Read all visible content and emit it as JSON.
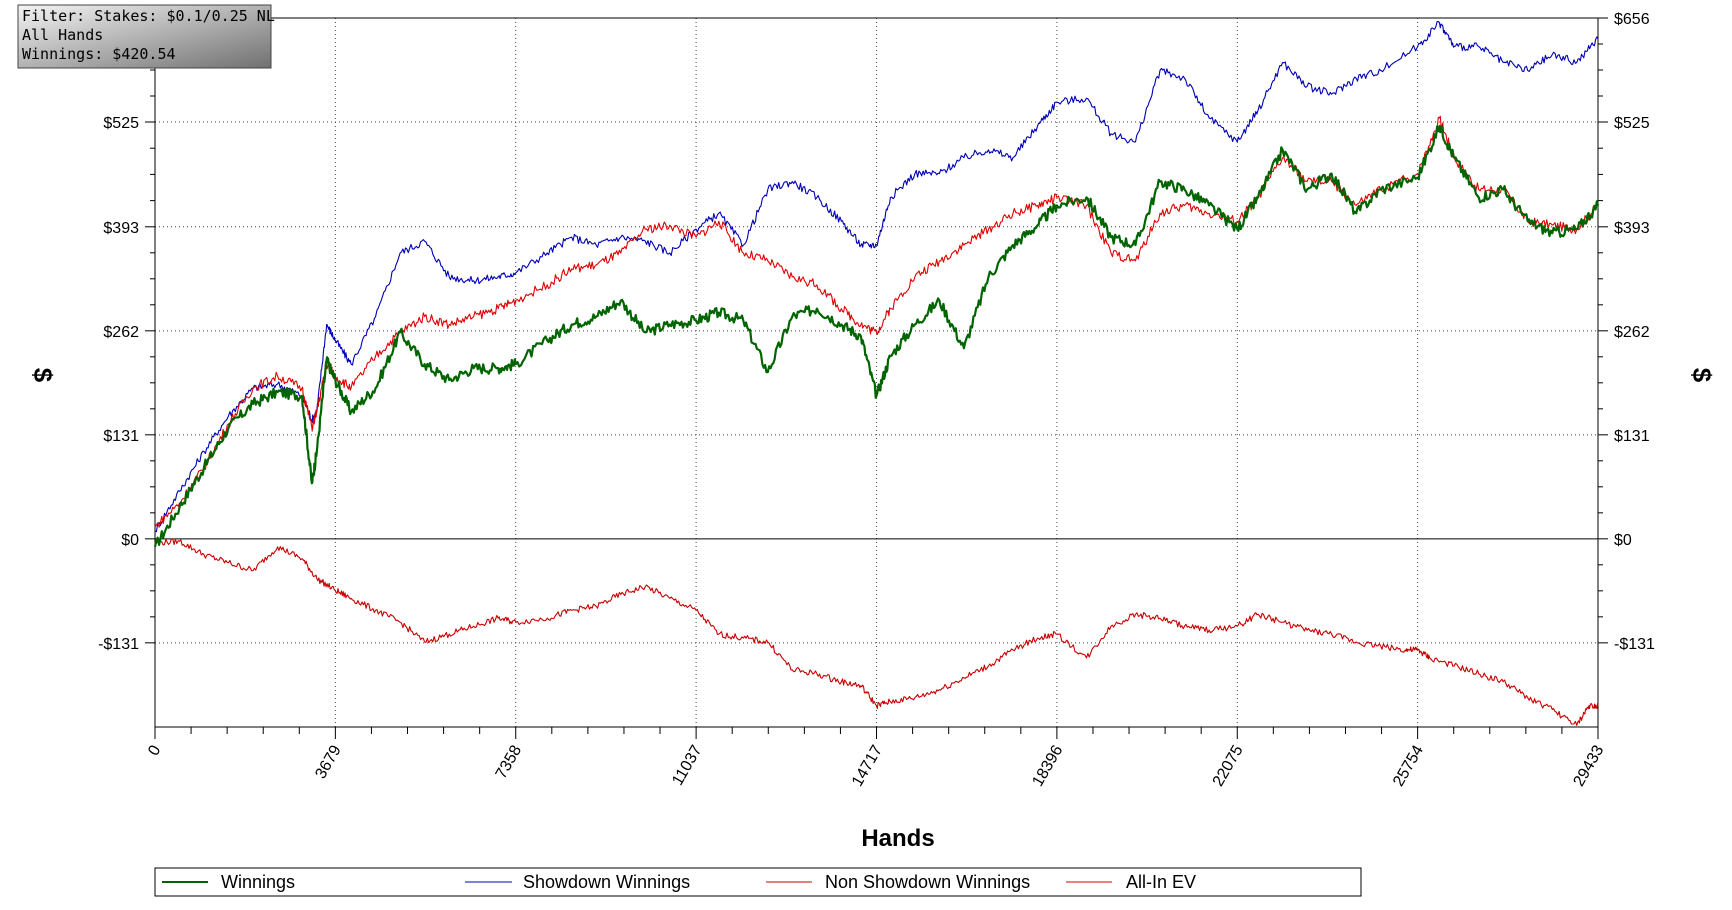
{
  "info_box": {
    "line1": "Filter: Stakes: $0.1/0.25 NL",
    "line2": "All Hands",
    "line3": "Winnings: $420.54"
  },
  "chart_data": {
    "type": "line",
    "xlabel": "Hands",
    "ylabel": "$",
    "xlim": [
      0,
      29433
    ],
    "ylim": [
      -237,
      656
    ],
    "x_ticks": [
      0,
      3679,
      7358,
      11037,
      14717,
      18396,
      22075,
      25754,
      29433
    ],
    "y_ticks": [
      -131,
      0,
      131,
      262,
      393,
      525,
      656
    ],
    "y_tick_labels": [
      "-$131",
      "$0",
      "$131",
      "$262",
      "$393",
      "$525",
      "$656"
    ],
    "grid": true,
    "legend_position": "bottom",
    "series": [
      {
        "name": "Winnings",
        "color": "#006400",
        "x": [
          0,
          500,
          1000,
          1500,
          2000,
          2500,
          3000,
          3200,
          3300,
          3500,
          3679,
          4000,
          4500,
          5000,
          5500,
          6000,
          6500,
          7000,
          7358,
          8000,
          8500,
          9000,
          9500,
          10000,
          10500,
          11037,
          11500,
          12000,
          12500,
          13000,
          13500,
          14000,
          14400,
          14717,
          15000,
          15500,
          16000,
          16500,
          17000,
          17500,
          18000,
          18396,
          19000,
          19500,
          20000,
          20500,
          21000,
          21500,
          22075,
          22500,
          23000,
          23500,
          24000,
          24500,
          25000,
          25754,
          26200,
          26500,
          27000,
          27500,
          28000,
          28500,
          29000,
          29433
        ],
        "values": [
          -10,
          40,
          90,
          140,
          170,
          185,
          180,
          70,
          110,
          225,
          200,
          160,
          190,
          260,
          220,
          200,
          215,
          215,
          220,
          250,
          270,
          280,
          300,
          260,
          270,
          275,
          285,
          275,
          210,
          280,
          290,
          270,
          255,
          180,
          230,
          270,
          300,
          240,
          330,
          370,
          395,
          420,
          430,
          380,
          370,
          450,
          440,
          420,
          390,
          430,
          490,
          440,
          460,
          410,
          440,
          455,
          520,
          480,
          430,
          440,
          400,
          385,
          390,
          420
        ]
      },
      {
        "name": "Showdown Winnings",
        "color": "#0000b4",
        "x": [
          0,
          500,
          1000,
          1500,
          2000,
          2500,
          3000,
          3200,
          3300,
          3500,
          3679,
          4000,
          4500,
          5000,
          5500,
          6000,
          6500,
          7000,
          7358,
          8000,
          8500,
          9000,
          9500,
          10000,
          10500,
          11037,
          11500,
          12000,
          12500,
          13000,
          13500,
          14000,
          14400,
          14717,
          15000,
          15500,
          16000,
          16500,
          17000,
          17500,
          18000,
          18396,
          19000,
          19500,
          20000,
          20500,
          21000,
          21500,
          22075,
          22500,
          23000,
          23500,
          24000,
          24500,
          25000,
          25754,
          26200,
          26500,
          27000,
          27500,
          28000,
          28500,
          29000,
          29433
        ],
        "values": [
          10,
          60,
          110,
          155,
          190,
          195,
          180,
          150,
          160,
          270,
          250,
          220,
          280,
          360,
          375,
          330,
          325,
          330,
          335,
          360,
          380,
          370,
          380,
          375,
          360,
          390,
          410,
          370,
          440,
          450,
          430,
          400,
          370,
          370,
          430,
          460,
          460,
          480,
          490,
          480,
          520,
          550,
          555,
          510,
          500,
          590,
          580,
          530,
          500,
          540,
          600,
          570,
          560,
          580,
          590,
          620,
          650,
          620,
          620,
          600,
          590,
          610,
          600,
          630
        ]
      },
      {
        "name": "Non Showdown Winnings",
        "color": "#c80000",
        "x": [
          0,
          500,
          1000,
          1500,
          2000,
          2500,
          3000,
          3300,
          3679,
          4000,
          4500,
          5000,
          5500,
          6000,
          6500,
          7000,
          7358,
          8000,
          8500,
          9000,
          9500,
          10000,
          10500,
          11037,
          11500,
          12000,
          12500,
          13000,
          13500,
          14000,
          14400,
          14717,
          15000,
          15500,
          16000,
          16500,
          17000,
          17500,
          18000,
          18396,
          19000,
          19500,
          20000,
          20500,
          21000,
          21500,
          22075,
          22500,
          23000,
          23500,
          24000,
          24500,
          25000,
          25500,
          25754,
          26000,
          26500,
          27000,
          27500,
          28000,
          28500,
          29000,
          29250,
          29433
        ],
        "values": [
          -5,
          -3,
          -20,
          -30,
          -40,
          -10,
          -25,
          -50,
          -65,
          -75,
          -90,
          -105,
          -130,
          -120,
          -110,
          -100,
          -105,
          -100,
          -90,
          -85,
          -70,
          -60,
          -75,
          -90,
          -120,
          -125,
          -130,
          -165,
          -170,
          -180,
          -185,
          -210,
          -205,
          -200,
          -190,
          -175,
          -160,
          -140,
          -125,
          -120,
          -150,
          -110,
          -95,
          -100,
          -110,
          -115,
          -110,
          -95,
          -105,
          -115,
          -120,
          -130,
          -135,
          -140,
          -140,
          -150,
          -160,
          -170,
          -180,
          -200,
          -215,
          -235,
          -210,
          -210
        ]
      },
      {
        "name": "All-In EV",
        "color": "#e00000",
        "x": [
          0,
          500,
          1000,
          1500,
          2000,
          2500,
          3000,
          3200,
          3300,
          3500,
          3679,
          4000,
          4500,
          5000,
          5500,
          6000,
          6500,
          7000,
          7358,
          8000,
          8500,
          9000,
          9500,
          10000,
          10500,
          11037,
          11500,
          12000,
          12500,
          13000,
          13500,
          14000,
          14400,
          14717,
          15000,
          15500,
          16000,
          16500,
          17000,
          17500,
          18000,
          18396,
          19000,
          19500,
          20000,
          20500,
          21000,
          21500,
          22075,
          22500,
          23000,
          23500,
          24000,
          24500,
          25000,
          25754,
          26200,
          26500,
          27000,
          27500,
          28000,
          28500,
          29000,
          29433
        ],
        "values": [
          15,
          45,
          90,
          145,
          190,
          205,
          190,
          140,
          160,
          220,
          205,
          190,
          230,
          260,
          280,
          270,
          280,
          290,
          300,
          320,
          340,
          345,
          360,
          390,
          395,
          380,
          400,
          360,
          350,
          330,
          320,
          290,
          270,
          260,
          290,
          330,
          350,
          370,
          390,
          410,
          420,
          430,
          420,
          360,
          350,
          410,
          420,
          410,
          400,
          430,
          480,
          450,
          450,
          420,
          440,
          460,
          530,
          480,
          440,
          440,
          400,
          395,
          390,
          420
        ]
      }
    ]
  },
  "legend": {
    "items": [
      {
        "label": "Winnings",
        "color": "#006400"
      },
      {
        "label": "Showdown Winnings",
        "color": "#0000b4"
      },
      {
        "label": "Non Showdown Winnings",
        "color": "#c80000"
      },
      {
        "label": "All-In EV",
        "color": "#e00000"
      }
    ]
  }
}
